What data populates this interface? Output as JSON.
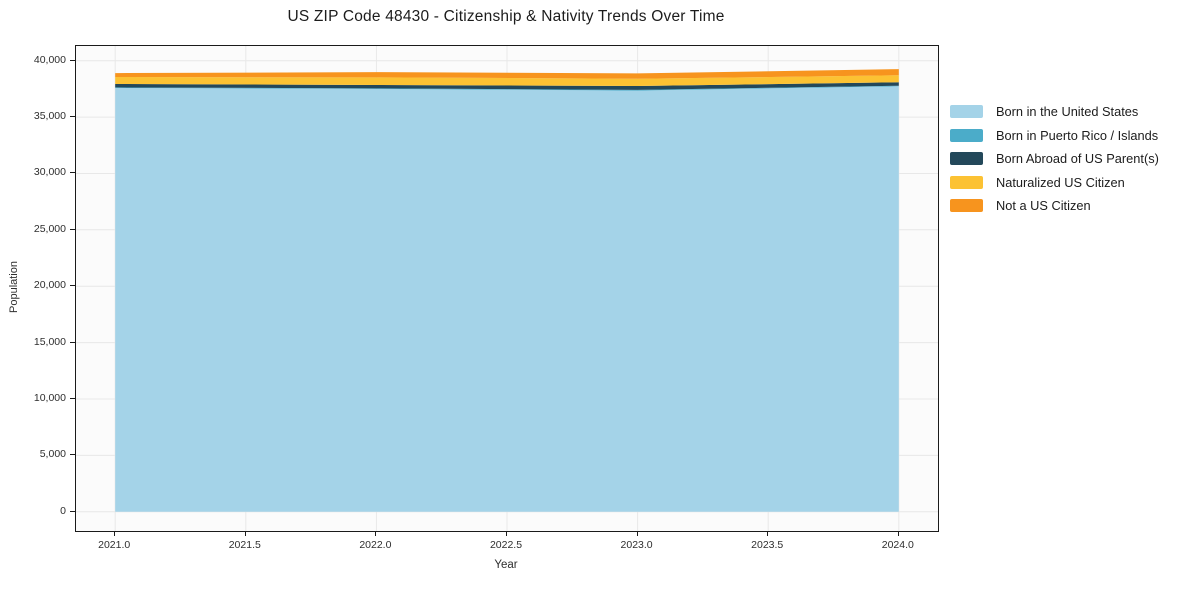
{
  "chart_data": {
    "type": "area",
    "stacked": true,
    "title": "US ZIP Code 48430 - Citizenship & Nativity Trends Over Time",
    "xlabel": "Year",
    "ylabel": "Population",
    "x": [
      2021,
      2022,
      2023,
      2024
    ],
    "series": [
      {
        "name": "Born in the United States",
        "color": "#a4d3e8",
        "values": [
          37580,
          37490,
          37350,
          37730
        ]
      },
      {
        "name": "Born in Puerto Rico / Islands",
        "color": "#4bacc9",
        "values": [
          50,
          50,
          60,
          50
        ]
      },
      {
        "name": "Born Abroad of US Parent(s)",
        "color": "#23485a",
        "values": [
          300,
          300,
          340,
          300
        ]
      },
      {
        "name": "Naturalized US Citizen",
        "color": "#fcc233",
        "values": [
          620,
          680,
          650,
          620
        ]
      },
      {
        "name": "Not a US Citizen",
        "color": "#f7941e",
        "values": [
          350,
          470,
          470,
          550
        ]
      }
    ],
    "xlim": [
      2020.85,
      2024.15
    ],
    "ylim": [
      -1700,
      41300
    ],
    "xticks": {
      "values": [
        2021.0,
        2021.5,
        2022.0,
        2022.5,
        2023.0,
        2023.5,
        2024.0
      ],
      "labels": [
        "2021.0",
        "2021.5",
        "2022.0",
        "2022.5",
        "2023.0",
        "2023.5",
        "2024.0"
      ]
    },
    "yticks": {
      "values": [
        0,
        5000,
        10000,
        15000,
        20000,
        25000,
        30000,
        35000,
        40000
      ],
      "labels": [
        "0",
        "5,000",
        "10,000",
        "15,000",
        "20,000",
        "25,000",
        "30,000",
        "35,000",
        "40,000"
      ]
    },
    "grid": true,
    "legend_position": "right",
    "plot_background": "#fbfbfb",
    "grid_color": "#e8e8e8",
    "spine_color": "#1a1a1a"
  }
}
